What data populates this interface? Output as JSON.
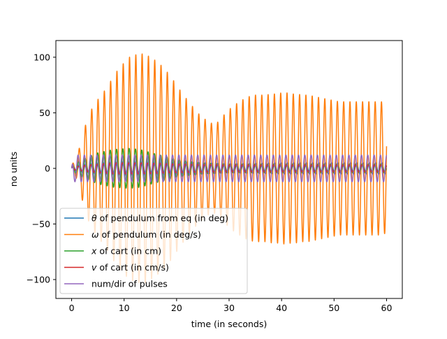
{
  "chart_data": {
    "type": "line",
    "title": "",
    "xlabel": "time (in seconds)",
    "ylabel": "no units",
    "xlim": [
      -3,
      63
    ],
    "ylim": [
      -117,
      115
    ],
    "x_ticks": [
      0,
      10,
      20,
      30,
      40,
      50,
      60
    ],
    "y_ticks": [
      -100,
      -50,
      0,
      50,
      100
    ],
    "grid": false,
    "legend_position": "lower-left",
    "series": [
      {
        "name": "θ of pendulum from eq (in deg)",
        "legend_italic": "θ",
        "legend_rest": " of pendulum from eq (in deg)",
        "color": "#1f77b4",
        "period_s": 1.2,
        "envelope": {
          "t": [
            0,
            2,
            5,
            10,
            13,
            20,
            30,
            40,
            50,
            60
          ],
          "amp": [
            2,
            4,
            6,
            8,
            8,
            6,
            4,
            5,
            5,
            5
          ]
        }
      },
      {
        "name": "ω of pendulum (in deg/s)",
        "legend_italic": "ω",
        "legend_rest": " of pendulum (in deg/s)",
        "color": "#ff7f0e",
        "period_s": 1.2,
        "envelope": {
          "t": [
            0,
            1,
            2,
            3,
            4,
            5,
            6,
            7,
            8,
            9,
            10,
            11,
            12,
            13,
            14,
            15,
            16,
            17,
            18,
            19,
            20,
            21,
            22,
            23,
            24,
            25,
            26,
            27,
            28,
            29,
            30,
            31,
            32,
            33,
            34,
            35,
            36,
            37,
            38,
            39,
            40,
            41,
            42,
            43,
            44,
            45,
            46,
            47,
            48,
            49,
            50,
            51,
            52,
            53,
            54,
            55,
            56,
            57,
            58,
            59,
            60
          ],
          "amp": [
            3,
            10,
            28,
            45,
            55,
            62,
            68,
            75,
            83,
            90,
            95,
            100,
            102,
            103,
            103,
            100,
            97,
            93,
            88,
            82,
            75,
            68,
            62,
            56,
            50,
            46,
            42,
            40,
            42,
            48,
            53,
            57,
            60,
            63,
            65,
            66,
            66,
            66,
            67,
            67,
            68,
            68,
            67,
            67,
            66,
            66,
            65,
            64,
            63,
            62,
            61,
            60,
            60,
            60,
            60,
            60,
            60,
            60,
            60,
            60,
            58
          ]
        }
      },
      {
        "name": "x of cart (in cm)",
        "legend_italic": "x",
        "legend_rest": " of cart (in cm)",
        "color": "#2ca02c",
        "period_s": 1.2,
        "envelope": {
          "t": [
            0,
            2,
            5,
            8,
            11,
            13,
            16,
            20,
            25,
            30,
            40,
            50,
            60
          ],
          "amp": [
            2,
            8,
            14,
            17,
            18,
            17,
            13,
            8,
            5,
            4,
            4,
            4,
            4
          ]
        }
      },
      {
        "name": "v of cart  (in cm/s)",
        "legend_italic": "v",
        "legend_rest": " of cart  (in cm/s)",
        "color": "#d62728",
        "period_s": 1.2,
        "envelope": {
          "t": [
            0,
            3,
            8,
            13,
            20,
            30,
            40,
            50,
            60
          ],
          "amp": [
            1,
            3,
            5,
            5,
            4,
            3,
            3,
            3,
            3
          ]
        }
      },
      {
        "name": "num/dir of pulses",
        "legend_italic": "",
        "legend_rest": "num/dir of pulses",
        "color": "#9467bd",
        "period_s": 1.2,
        "envelope": {
          "t": [
            0,
            0.4,
            1,
            60
          ],
          "amp": [
            0,
            12,
            12,
            12
          ]
        }
      }
    ],
    "t_range": [
      0,
      60
    ]
  }
}
